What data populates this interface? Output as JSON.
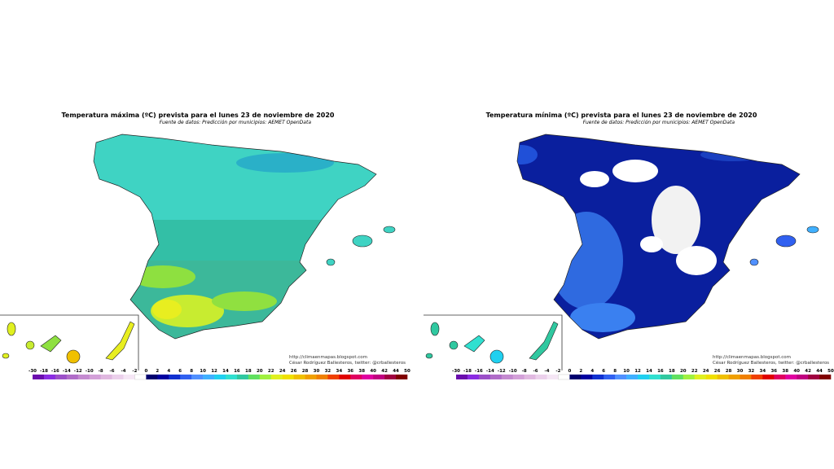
{
  "maps": [
    {
      "title": "Temperatura máxima (ºC) prevista para el lunes 23 de noviembre de 2020",
      "source": "Fuente de datos: Predicción por municipios: AEMET OpenData",
      "credit_url": "http://climaenmapas.blogspot.com",
      "credit_author": "César Rodríguez Ballesteros, twitter: @crballesteros"
    },
    {
      "title": "Temperatura mínima (ºC) prevista para el lunes 23 de noviembre de 2020",
      "source": "Fuente de datos: Predicción por municipios: AEMET OpenData",
      "credit_url": "http://climaenmapas.blogspot.com",
      "credit_author": "César Rodríguez Ballesteros, twitter: @crballesteros"
    }
  ],
  "legend": {
    "labels": [
      -30,
      -18,
      -16,
      -14,
      -12,
      -10,
      -8,
      -6,
      -4,
      -2,
      0,
      2,
      4,
      6,
      8,
      10,
      12,
      14,
      16,
      18,
      20,
      22,
      24,
      26,
      28,
      30,
      32,
      34,
      36,
      38,
      40,
      42,
      44,
      50
    ],
    "colors": [
      "#6a0dad",
      "#8a2be2",
      "#9b4fc8",
      "#b06cc8",
      "#c48ad0",
      "#d3a0d8",
      "#e0b8e0",
      "#ebd0eb",
      "#f5e6f5",
      "#ffffff",
      "#00006e",
      "#0000a0",
      "#1030d0",
      "#3060f0",
      "#5090ff",
      "#40b0ff",
      "#20d0f0",
      "#30e0d0",
      "#30c8a0",
      "#60e060",
      "#a0f040",
      "#e0f020",
      "#f0e000",
      "#f0c000",
      "#f0a000",
      "#f08000",
      "#f04000",
      "#e00000",
      "#e00060",
      "#e000a0",
      "#c00080",
      "#a00040",
      "#800000"
    ]
  }
}
